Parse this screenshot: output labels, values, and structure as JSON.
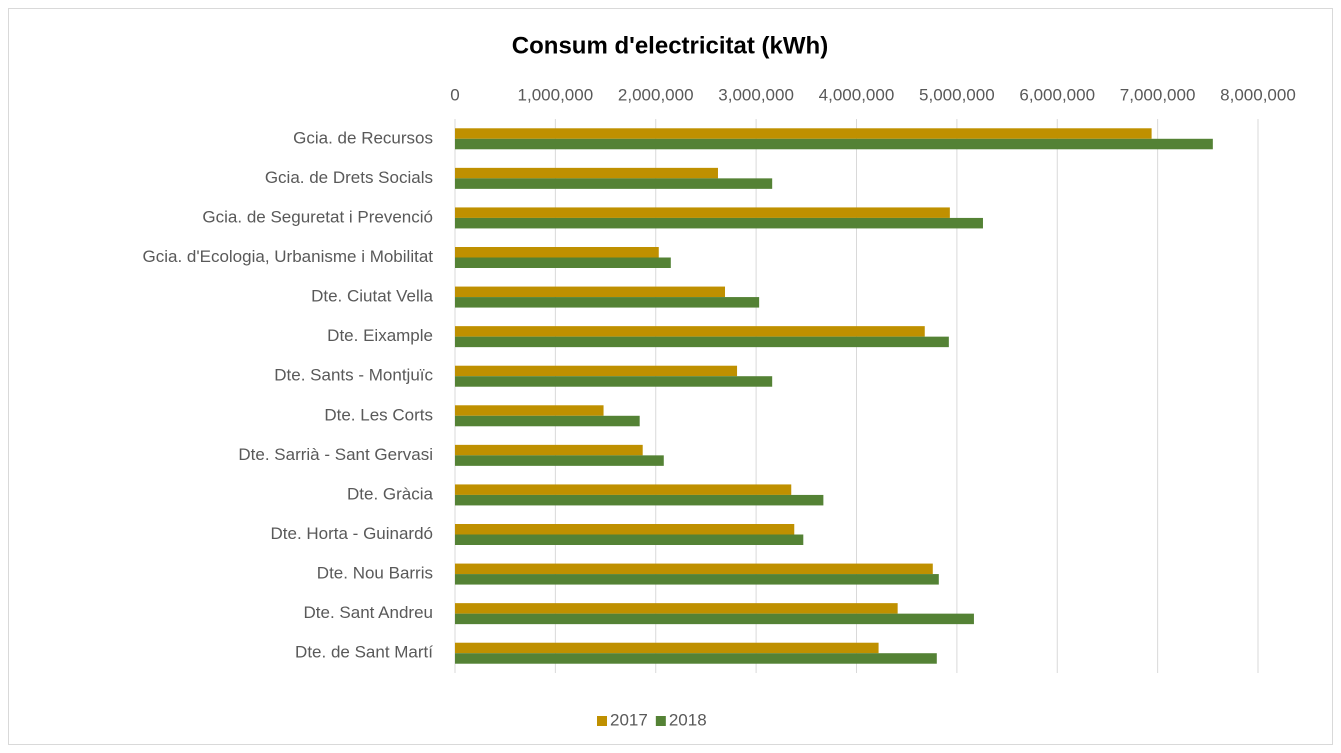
{
  "chart_data": {
    "type": "barh",
    "title": "Consum d'electricitat (kWh)",
    "categories": [
      "Gcia. de Recursos",
      "Gcia. de Drets Socials",
      "Gcia. de Seguretat i Prevenció",
      "Gcia. d'Ecologia, Urbanisme i Mobilitat",
      "Dte. Ciutat Vella",
      "Dte. Eixample",
      "Dte. Sants - Montjuïc",
      "Dte. Les Corts",
      "Dte. Sarrià - Sant Gervasi",
      "Dte. Gràcia",
      "Dte. Horta - Guinardó",
      "Dte. Nou Barris",
      "Dte. Sant Andreu",
      "Dte. de Sant Martí"
    ],
    "series": [
      {
        "name": "2017",
        "color": "#bf9000",
        "values": [
          6940000,
          2620000,
          4930000,
          2030000,
          2690000,
          4680000,
          2810000,
          1480000,
          1870000,
          3350000,
          3380000,
          4760000,
          4410000,
          4220000
        ]
      },
      {
        "name": "2018",
        "color": "#548235",
        "values": [
          7550000,
          3160000,
          5260000,
          2150000,
          3030000,
          4920000,
          3160000,
          1840000,
          2080000,
          3670000,
          3470000,
          4820000,
          5170000,
          4800000
        ]
      }
    ],
    "xlim": [
      0,
      8000000
    ],
    "xticks": [
      0,
      {
        "value": 1000000,
        "label": "1,000,000"
      },
      {
        "value": 2000000,
        "label": "2,000,000"
      },
      {
        "value": 3000000,
        "label": "3,000,000"
      },
      {
        "value": 4000000,
        "label": "4,000,000"
      },
      {
        "value": 5000000,
        "label": "5,000,000"
      },
      {
        "value": 6000000,
        "label": "6,000,000"
      },
      {
        "value": 7000000,
        "label": "7,000,000"
      },
      {
        "value": 8000000,
        "label": "8,000,000"
      }
    ],
    "grid": true,
    "legend": "bottom"
  }
}
